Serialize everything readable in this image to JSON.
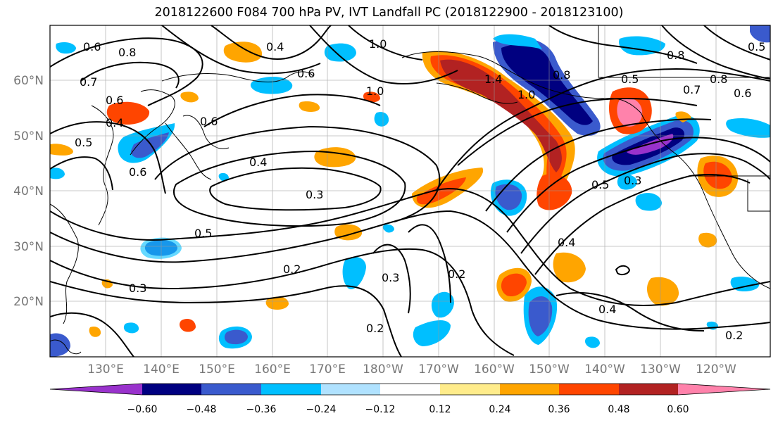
{
  "title": "2018122600 F084 700 hPa PV, IVT Landfall PC (2018122900 - 2018123100)",
  "axes": {
    "lat_labels": [
      "60°N",
      "50°N",
      "40°N",
      "30°N",
      "20°N"
    ],
    "lon_labels": [
      "130°E",
      "140°E",
      "150°E",
      "160°E",
      "170°E",
      "180°W",
      "170°W",
      "160°W",
      "150°W",
      "140°W",
      "130°W",
      "120°W"
    ]
  },
  "contour_labels": [
    "0.6",
    "0.8",
    "0.7",
    "0.4",
    "1.0",
    "0.6",
    "1.4",
    "1.0",
    "0.8",
    "0.7",
    "0.6",
    "0.6",
    "0.4",
    "0.5",
    "0.6",
    "0.6",
    "0.4",
    "0.3",
    "0.5",
    "0.2",
    "0.3",
    "0.3",
    "0.2",
    "0.2",
    "0.4",
    "0.5",
    "0.3",
    "0.4",
    "0.2",
    "0.8",
    "0.5",
    "0.8",
    "0.5",
    "1.0"
  ],
  "colorbar": {
    "colors": [
      "#9932cc",
      "#000080",
      "#3a5acd",
      "#00bfff",
      "#b0e2ff",
      "#ffffff",
      "#ffec8b",
      "#ffa500",
      "#ff4500",
      "#b22222",
      "#ff82ab"
    ],
    "tick_labels": [
      "−0.60",
      "−0.48",
      "−0.36",
      "−0.24",
      "−0.12",
      "0.12",
      "0.24",
      "0.36",
      "0.48",
      "0.60"
    ]
  }
}
